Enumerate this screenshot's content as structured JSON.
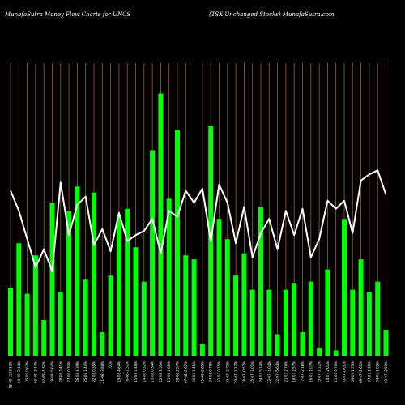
{
  "chart_data": {
    "type": "bar",
    "title_left": "MunafaSutra  Money Flow  Charts for UNCS",
    "title_right": "(TSX   Unchanged Stocks) MunafaSutra.com",
    "categories": [
      "08-09 1293.33%",
      "04-09 -2.44%",
      "05-09 0.63%",
      "03-09 -3.44%",
      "02-09 -1.32%",
      "29-08 -5.64%",
      "28-08 7.41%",
      "27-08 0.30%",
      "26-08 4.39%",
      "25-08 1.40%",
      "22-08 0.35%",
      "21-08 -3.88%",
      "0.%",
      "19-08 4.64%",
      "18-08 -1.31%",
      "15-08 1.48%",
      "14-08 0.32%",
      "13-08 0.34%",
      "12-08 3.53%",
      "11-08 1.66%",
      "08-08 2.57%",
      "07-08 -2.67%",
      "06-08 1.41%",
      "05-08 -2.85%",
      "04-08 0.78%",
      "31-07 0.15%",
      "30-07 -2.73%",
      "29-07 -1.27%",
      "28-07 -0.57%",
      "25-07 -1.01%",
      "24-07 5.14%",
      "23-07 -1.04%",
      "22-07 -5.64%",
      "21-07 2.74%",
      "18-07 2.57%",
      "17-07 -2.18%",
      "16-07 1.07%",
      "15-07 -2.12%",
      "14-07 2.01%",
      "11-07 0.76%",
      "10-07 -0.01%",
      "09-07 1.73%",
      "08-07 -2.61%",
      "07-07 2.99%",
      "04-07 1.09%",
      "03-07 -2.59%"
    ],
    "bar_values": [
      0.34,
      0.56,
      0.31,
      0.5,
      0.18,
      0.76,
      0.32,
      0.72,
      0.84,
      0.38,
      0.81,
      0.12,
      0.4,
      0.7,
      0.73,
      0.54,
      0.37,
      1.02,
      1.3,
      0.78,
      1.12,
      0.5,
      0.48,
      0.06,
      1.14,
      0.68,
      0.58,
      0.4,
      0.51,
      0.33,
      0.74,
      0.33,
      0.11,
      0.33,
      0.36,
      0.12,
      0.37,
      0.04,
      0.43,
      0.03,
      0.68,
      0.33,
      0.48,
      0.32,
      0.37,
      0.13
    ],
    "line_values": [
      0.82,
      0.72,
      0.58,
      0.44,
      0.53,
      0.42,
      0.86,
      0.6,
      0.75,
      0.79,
      0.55,
      0.63,
      0.52,
      0.71,
      0.57,
      0.6,
      0.62,
      0.68,
      0.51,
      0.72,
      0.69,
      0.82,
      0.76,
      0.83,
      0.57,
      0.85,
      0.76,
      0.56,
      0.74,
      0.49,
      0.61,
      0.68,
      0.53,
      0.72,
      0.6,
      0.73,
      0.49,
      0.58,
      0.77,
      0.73,
      0.77,
      0.61,
      0.87,
      0.9,
      0.92,
      0.8
    ],
    "ylim": [
      0,
      1.45
    ],
    "colors": {
      "background": "#000000",
      "bar": "#00ff00",
      "line": "#ffffff",
      "grid": "#a0602a",
      "text": "#ffffff"
    }
  }
}
